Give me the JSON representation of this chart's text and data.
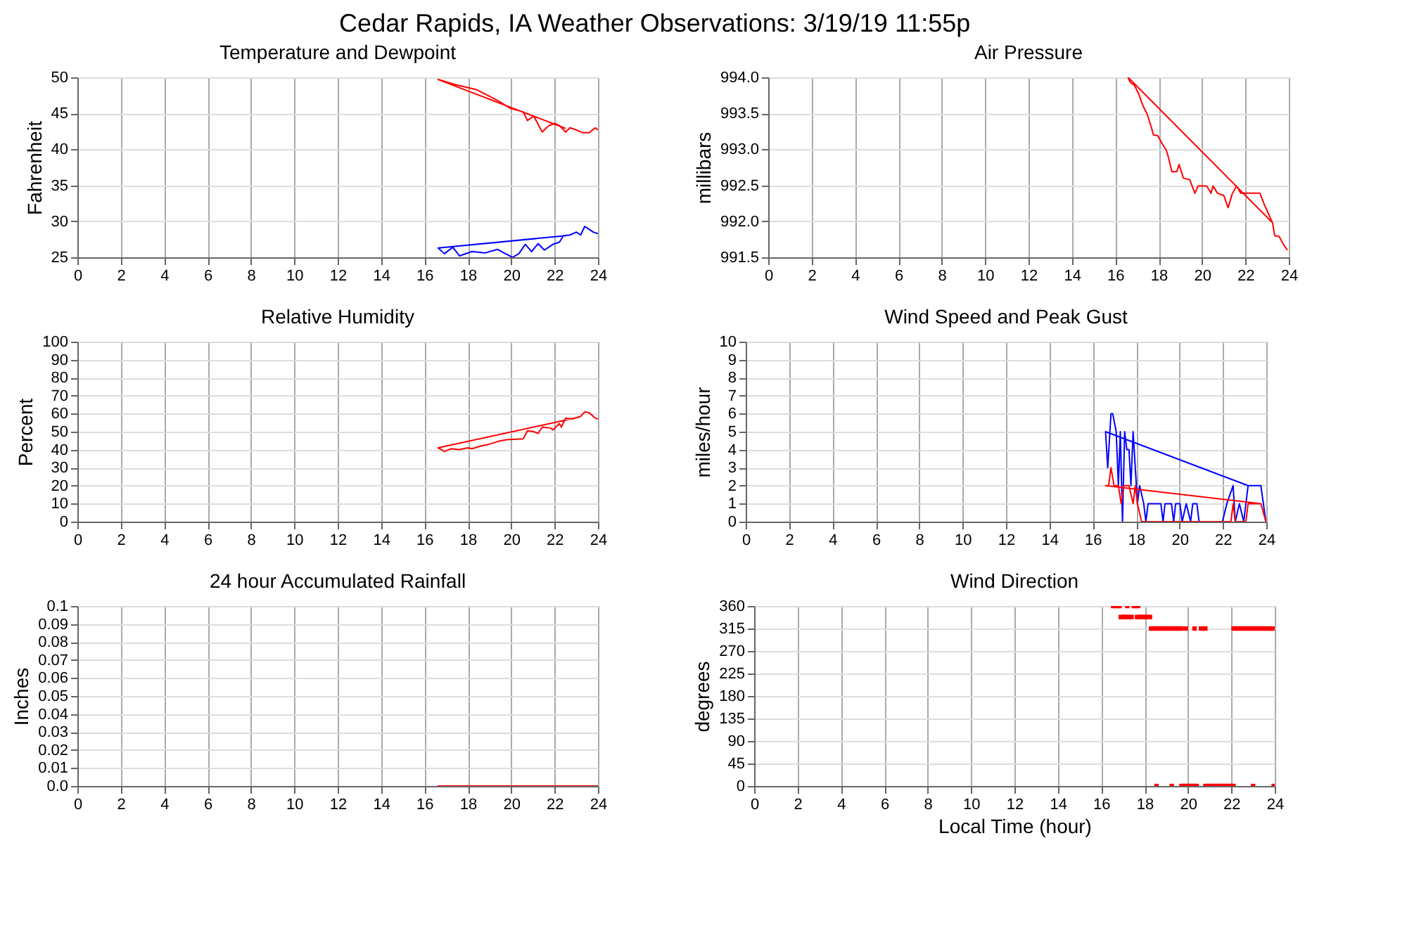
{
  "chart_data": [
    {
      "type": "line",
      "title": "Temperature and Dewpoint",
      "ylabel": "Fahrenheit",
      "annotations": [
        "Cedar Rapids, IA Weather Observations: 3/19/19 11:55p"
      ],
      "xlim": [
        0,
        24
      ],
      "xticks": [
        0,
        2,
        4,
        6,
        8,
        10,
        12,
        14,
        16,
        18,
        20,
        22,
        24
      ],
      "ylim": [
        25,
        50
      ],
      "yticks": [
        25,
        30,
        35,
        40,
        45,
        50
      ],
      "grid": true,
      "series": [
        {
          "color": "#ff0000",
          "x": [
            22.51,
            16.63,
            17.41,
            18.39,
            19.37,
            19.96,
            20.55,
            20.75,
            21.04,
            21.43,
            21.73,
            22.02,
            22.22,
            22.51,
            22.71,
            23.0,
            23.29,
            23.59,
            23.88,
            24.0
          ],
          "values": [
            42.9,
            49.7,
            49.0,
            48.3,
            46.8,
            45.7,
            45.2,
            44.0,
            44.6,
            42.4,
            43.3,
            43.6,
            43.3,
            42.4,
            43.0,
            42.7,
            42.3,
            42.3,
            43.0,
            42.7
          ]
        },
        {
          "color": "#0000ff",
          "x": [
            22.51,
            16.63,
            16.92,
            17.31,
            17.61,
            18.2,
            18.78,
            19.37,
            19.67,
            20.06,
            20.35,
            20.65,
            20.94,
            21.24,
            21.53,
            21.92,
            22.22,
            22.41,
            22.71,
            23.0,
            23.2,
            23.39,
            23.59,
            23.78,
            24.0
          ],
          "values": [
            28.0,
            26.3,
            25.5,
            26.4,
            25.2,
            25.8,
            25.6,
            26.1,
            25.6,
            25.0,
            25.5,
            26.8,
            25.8,
            26.9,
            26.0,
            26.8,
            27.1,
            28.0,
            28.1,
            28.5,
            28.1,
            29.3,
            28.9,
            28.5,
            28.3
          ]
        }
      ]
    },
    {
      "type": "line",
      "title": "Air Pressure",
      "ylabel": "millibars",
      "xlim": [
        0,
        24
      ],
      "xticks": [
        0,
        2,
        4,
        6,
        8,
        10,
        12,
        14,
        16,
        18,
        20,
        22,
        24
      ],
      "ylim": [
        991.5,
        994.0
      ],
      "yticks": [
        991.5,
        {
          "value": 992.0,
          "label": "992.0"
        },
        992.5,
        {
          "value": 993.0,
          "label": "993.0"
        },
        993.5,
        {
          "value": 994.0,
          "label": "994.0"
        }
      ],
      "grid": true,
      "series": [
        {
          "color": "#ff0000",
          "x": [
            23.25,
            16.59,
            16.69,
            16.88,
            17.08,
            17.27,
            17.47,
            17.67,
            17.76,
            17.96,
            18.16,
            18.35,
            18.45,
            18.61,
            18.84,
            18.94,
            19.14,
            19.43,
            19.67,
            19.82,
            20.22,
            20.41,
            20.51,
            20.71,
            21.0,
            21.2,
            21.39,
            21.59,
            21.78,
            22.67,
            22.86,
            23.25,
            23.35,
            23.55,
            23.75,
            23.94
          ],
          "values": [
            991.98,
            994.0,
            993.93,
            993.89,
            993.77,
            993.61,
            993.49,
            993.3,
            993.2,
            993.19,
            993.08,
            992.99,
            992.89,
            992.69,
            992.69,
            992.79,
            992.6,
            992.58,
            992.39,
            992.49,
            992.49,
            992.39,
            992.49,
            992.39,
            992.36,
            992.19,
            992.38,
            992.49,
            992.39,
            992.39,
            992.24,
            991.98,
            991.8,
            991.79,
            991.68,
            991.6
          ]
        }
      ]
    },
    {
      "type": "line",
      "title": "Relative Humidity",
      "ylabel": "Percent",
      "xlim": [
        0,
        24
      ],
      "xticks": [
        0,
        2,
        4,
        6,
        8,
        10,
        12,
        14,
        16,
        18,
        20,
        22,
        24
      ],
      "ylim": [
        0,
        100
      ],
      "yticks": [
        0,
        10,
        20,
        30,
        40,
        50,
        60,
        70,
        80,
        90,
        100
      ],
      "grid": true,
      "series": [
        {
          "color": "#ff0000",
          "x": [
            23.1,
            16.63,
            16.92,
            17.22,
            17.61,
            18.0,
            18.2,
            18.59,
            18.98,
            19.37,
            19.76,
            20.55,
            20.75,
            21.04,
            21.24,
            21.43,
            21.82,
            21.92,
            22.22,
            22.31,
            22.51,
            22.8,
            23.2,
            23.39,
            23.59,
            23.88,
            24.0
          ],
          "values": [
            58,
            41,
            39,
            40.5,
            40,
            41,
            40.5,
            42,
            43,
            44.5,
            45.5,
            46,
            50.5,
            50,
            49,
            52.5,
            52,
            51,
            54.5,
            52.5,
            57.5,
            57,
            58.5,
            61,
            60.5,
            57.5,
            57
          ]
        }
      ]
    },
    {
      "type": "line",
      "title": "Wind Speed and Peak Gust",
      "ylabel": "miles/hour",
      "xlim": [
        0,
        24
      ],
      "xticks": [
        0,
        2,
        4,
        6,
        8,
        10,
        12,
        14,
        16,
        18,
        20,
        22,
        24
      ],
      "ylim": [
        0,
        10
      ],
      "yticks": [
        0,
        1,
        2,
        3,
        4,
        5,
        6,
        7,
        8,
        9,
        10
      ],
      "grid": true,
      "series": [
        {
          "color": "#0000ff",
          "x": [
            23.16,
            16.59,
            16.69,
            16.84,
            16.92,
            17.08,
            17.18,
            17.27,
            17.37,
            17.47,
            17.57,
            17.67,
            17.76,
            17.86,
            17.96,
            18.06,
            18.16,
            18.35,
            18.45,
            18.55,
            19.14,
            19.24,
            19.33,
            19.63,
            19.73,
            19.82,
            20.02,
            20.12,
            20.31,
            20.51,
            20.61,
            20.8,
            20.9,
            21.98,
            22.18,
            22.47,
            22.57,
            22.76,
            22.96,
            23.16,
            23.75,
            23.98
          ],
          "values": [
            2,
            5,
            3,
            6,
            6,
            5,
            2,
            5,
            0,
            5,
            4,
            4,
            2,
            5,
            3,
            1,
            2,
            1,
            0,
            1,
            1,
            0,
            1,
            1,
            0,
            1,
            1,
            0,
            1,
            0,
            1,
            1,
            0,
            0,
            1,
            2,
            0,
            1,
            0,
            2,
            2,
            0
          ]
        },
        {
          "color": "#ff0000",
          "x": [
            23.75,
            16.59,
            16.73,
            16.84,
            16.98,
            17.18,
            17.31,
            17.43,
            17.67,
            17.86,
            17.96,
            18.06,
            18.25,
            22.37,
            22.47,
            22.57,
            23.06,
            23.16,
            23.75,
            23.98
          ],
          "values": [
            1,
            2,
            2,
            3,
            2,
            2,
            1,
            2,
            2,
            1,
            2,
            1,
            0,
            0,
            1,
            0,
            0,
            1,
            1,
            0
          ]
        }
      ]
    },
    {
      "type": "line",
      "title": "24 hour Accumulated Rainfall",
      "ylabel": "Inches",
      "xlim": [
        0,
        24
      ],
      "xticks": [
        0,
        2,
        4,
        6,
        8,
        10,
        12,
        14,
        16,
        18,
        20,
        22,
        24
      ],
      "ylim": [
        0,
        0.1
      ],
      "yticks": [
        {
          "value": 0,
          "label": "0.0"
        },
        0.01,
        0.02,
        0.03,
        0.04,
        0.05,
        0.06,
        0.07,
        0.08,
        0.09,
        {
          "value": 0.1,
          "label": "0.1"
        }
      ],
      "grid": true,
      "series": [
        {
          "color": "#ff0000",
          "x": [
            16.6,
            24
          ],
          "values": [
            0,
            0
          ]
        }
      ]
    },
    {
      "type": "scatter",
      "title": "Wind Direction",
      "ylabel": "degrees",
      "xlabel": "Local Time (hour)",
      "xlim": [
        0,
        24
      ],
      "xticks": [
        0,
        2,
        4,
        6,
        8,
        10,
        12,
        14,
        16,
        18,
        20,
        22,
        24
      ],
      "ylim": [
        0,
        360
      ],
      "yticks": [
        0,
        45,
        90,
        135,
        180,
        225,
        270,
        315,
        360
      ],
      "grid": true,
      "marker": "square",
      "series": [
        {
          "color": "#ff0000",
          "x": [
            16.55,
            16.65,
            16.75,
            16.85,
            17.2,
            17.5,
            17.6,
            17.7,
            16.9,
            17.0,
            17.1,
            17.2,
            17.3,
            17.4,
            17.65,
            17.75,
            17.85,
            17.95,
            18.05,
            18.15,
            18.25,
            18.3,
            18.4,
            18.5,
            18.6,
            18.7,
            18.8,
            18.9,
            19.0,
            19.1,
            19.2,
            19.3,
            19.4,
            19.5,
            19.6,
            19.7,
            19.9,
            20.3,
            20.6,
            20.7,
            20.8,
            22.1,
            22.2,
            22.3,
            22.4,
            22.5,
            22.6,
            22.7,
            22.8,
            22.9,
            23.0,
            23.1,
            23.2,
            23.3,
            23.4,
            23.5,
            23.6,
            23.7,
            23.8,
            23.9,
            18.55,
            19.25,
            19.7,
            19.8,
            19.9,
            20.0,
            20.1,
            20.2,
            20.3,
            20.4,
            20.8,
            20.9,
            21.0,
            21.1,
            21.2,
            21.3,
            21.4,
            21.5,
            21.6,
            21.7,
            21.8,
            21.9,
            22.0,
            22.1,
            23.0,
            23.95
          ],
          "values": [
            360,
            360,
            360,
            360,
            360,
            360,
            360,
            360,
            338,
            338,
            338,
            338,
            338,
            338,
            338,
            338,
            338,
            338,
            338,
            338,
            338,
            315,
            315,
            315,
            315,
            315,
            315,
            315,
            315,
            315,
            315,
            315,
            315,
            315,
            315,
            315,
            315,
            315,
            315,
            315,
            315,
            315,
            315,
            315,
            315,
            315,
            315,
            315,
            315,
            315,
            315,
            315,
            315,
            315,
            315,
            315,
            315,
            315,
            315,
            315,
            0,
            0,
            0,
            0,
            0,
            0,
            0,
            0,
            0,
            0,
            0,
            0,
            0,
            0,
            0,
            0,
            0,
            0,
            0,
            0,
            0,
            0,
            0,
            0,
            0,
            0
          ]
        }
      ]
    }
  ]
}
